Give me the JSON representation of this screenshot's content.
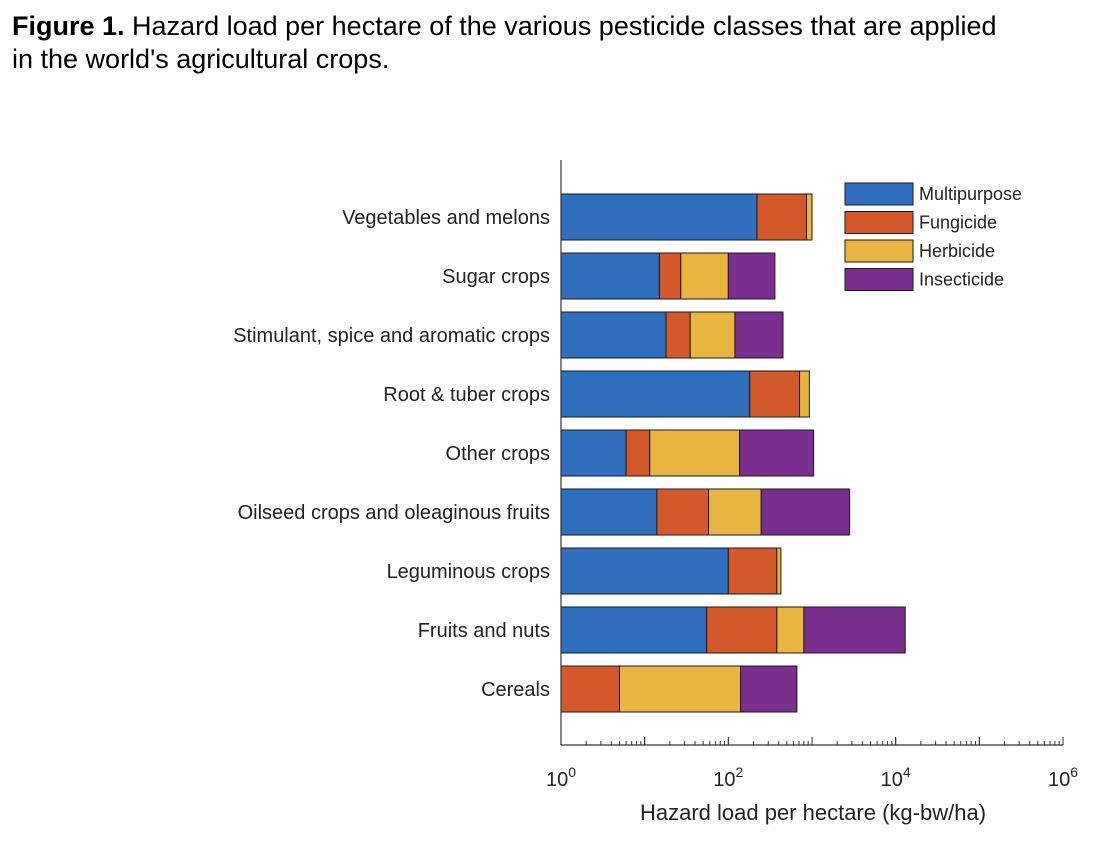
{
  "caption": {
    "label": "Figure 1.",
    "text": "Hazard load per hectare of the various pesticide classes that are applied in the world's agricultural crops."
  },
  "chart_data": {
    "type": "bar",
    "orientation": "horizontal",
    "stacked": true,
    "title": "",
    "xlabel": "Hazard load per hectare (kg-bw/ha)",
    "ylabel": "",
    "xscale": "log",
    "xlim": [
      1,
      1000000
    ],
    "xticks": [
      {
        "value": 1,
        "base": "10",
        "exp": "0"
      },
      {
        "value": 100,
        "base": "10",
        "exp": "2"
      },
      {
        "value": 10000,
        "base": "10",
        "exp": "4"
      },
      {
        "value": 1000000,
        "base": "10",
        "exp": "6"
      }
    ],
    "legend_position": "top-right",
    "categories": [
      "Vegetables and melons",
      "Sugar crops",
      "Stimulant, spice and aromatic crops",
      "Root & tuber crops",
      "Other crops",
      "Oilseed crops and oleaginous fruits",
      "Leguminous crops",
      "Fruits and nuts",
      "Cereals"
    ],
    "series": [
      {
        "name": "Multipurpose",
        "color": "#2f6fbd",
        "values": [
          220,
          15,
          18,
          180,
          6,
          14,
          100,
          55,
          0
        ]
      },
      {
        "name": "Fungicide",
        "color": "#d4592a",
        "values": [
          640,
          12,
          17,
          530,
          5.5,
          44,
          280,
          325,
          5
        ]
      },
      {
        "name": "Herbicide",
        "color": "#e8b540",
        "values": [
          140,
          73,
          85,
          220,
          125,
          189,
          45,
          420,
          135
        ]
      },
      {
        "name": "Insecticide",
        "color": "#7a2f8e",
        "values": [
          0,
          260,
          330,
          0,
          910,
          2570,
          0,
          12200,
          520
        ]
      }
    ]
  }
}
